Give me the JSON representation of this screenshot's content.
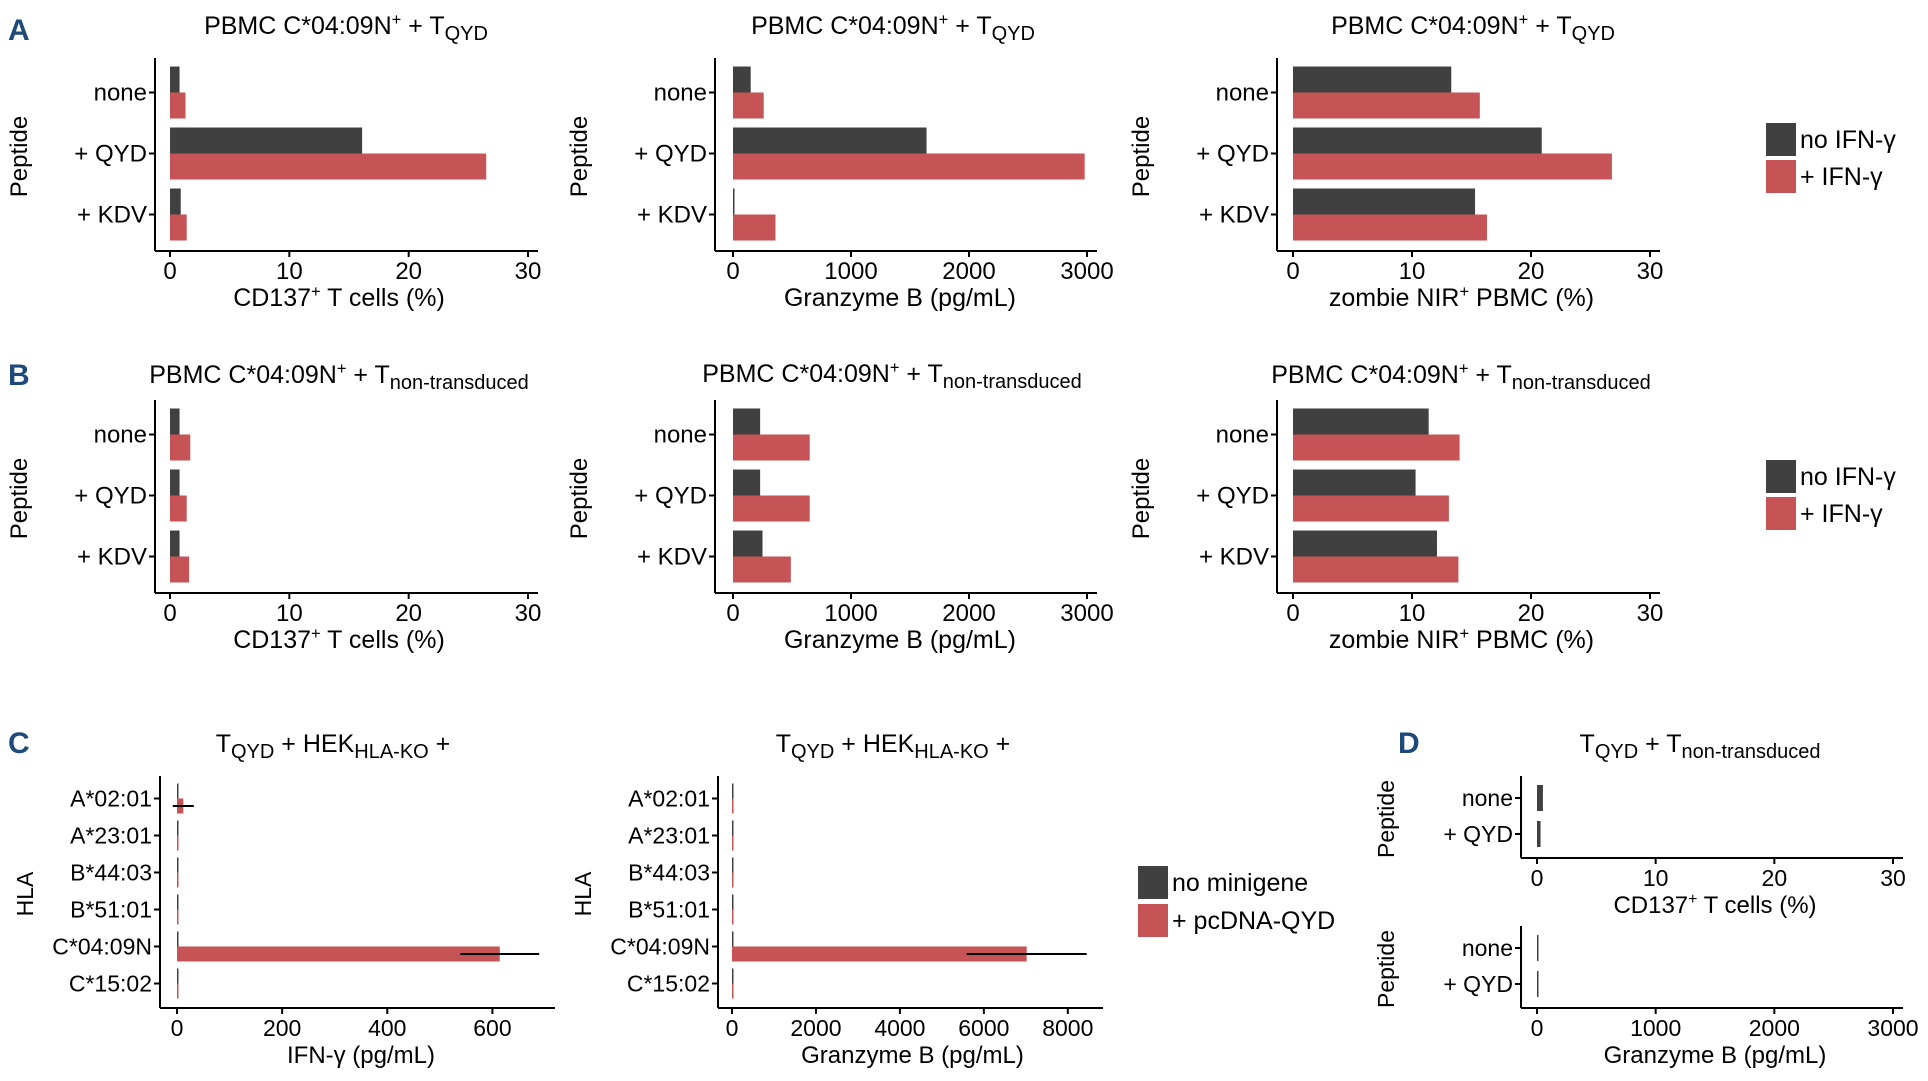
{
  "colors": {
    "no_treatment": "#404040",
    "treatment": "#c65355",
    "axis": "#000000",
    "panel_letter": "#1d4a7a"
  },
  "panels": {
    "A": "A",
    "B": "B",
    "C": "C",
    "D": "D"
  },
  "legends": {
    "ifn": {
      "no_label": "no IFN-γ",
      "plus_label": "+ IFN-γ"
    },
    "minigene": {
      "no_label": "no minigene",
      "plus_label": "+ pcDNA-QYD"
    }
  },
  "chart_data": [
    {
      "id": "A1",
      "panel": "A",
      "type": "bar",
      "orientation": "horizontal",
      "title": {
        "main": "PBMC C*04:09N",
        "sup": "+",
        "mid": " + T",
        "sub": "QYD"
      },
      "ylabel": "Peptide",
      "xlabel": {
        "pre": "CD137",
        "sup": "+",
        "post": " T cells (%)"
      },
      "xlim": [
        0,
        30
      ],
      "xticks": [
        "0",
        "10",
        "20",
        "30"
      ],
      "categories": [
        "none",
        "+ QYD",
        "+ KDV"
      ],
      "series": [
        {
          "name": "no IFN-γ",
          "values": [
            0.8,
            16.1,
            0.9
          ]
        },
        {
          "name": "+ IFN-γ",
          "values": [
            1.3,
            26.5,
            1.4
          ]
        }
      ]
    },
    {
      "id": "A2",
      "panel": "A",
      "type": "bar",
      "orientation": "horizontal",
      "title": {
        "main": "PBMC C*04:09N",
        "sup": "+",
        "mid": " + T",
        "sub": "QYD"
      },
      "ylabel": "Peptide",
      "xlabel": {
        "pre": "Granzyme B (pg/mL)",
        "sup": "",
        "post": ""
      },
      "xlim": [
        0,
        3000
      ],
      "xticks": [
        "0",
        "1000",
        "2000",
        "3000"
      ],
      "categories": [
        "none",
        "+ QYD",
        "+ KDV"
      ],
      "series": [
        {
          "name": "no IFN-γ",
          "values": [
            150,
            1640,
            10
          ]
        },
        {
          "name": "+ IFN-γ",
          "values": [
            260,
            2980,
            360
          ]
        }
      ]
    },
    {
      "id": "A3",
      "panel": "A",
      "type": "bar",
      "orientation": "horizontal",
      "title": {
        "main": "PBMC C*04:09N",
        "sup": "+",
        "mid": " + T",
        "sub": "QYD"
      },
      "ylabel": "Peptide",
      "xlabel": {
        "pre": "zombie NIR",
        "sup": "+",
        "post": " PBMC (%)"
      },
      "xlim": [
        0,
        30
      ],
      "xticks": [
        "0",
        "10",
        "20",
        "30"
      ],
      "categories": [
        "none",
        "+ QYD",
        "+ KDV"
      ],
      "series": [
        {
          "name": "no IFN-γ",
          "values": [
            13.3,
            20.9,
            15.3
          ]
        },
        {
          "name": "+ IFN-γ",
          "values": [
            15.7,
            26.8,
            16.3
          ]
        }
      ]
    },
    {
      "id": "B1",
      "panel": "B",
      "type": "bar",
      "orientation": "horizontal",
      "title": {
        "main": "PBMC C*04:09N",
        "sup": "+",
        "mid": " + T",
        "sub": "non-transduced"
      },
      "ylabel": "Peptide",
      "xlabel": {
        "pre": "CD137",
        "sup": "+",
        "post": " T cells (%)"
      },
      "xlim": [
        0,
        30
      ],
      "xticks": [
        "0",
        "10",
        "20",
        "30"
      ],
      "categories": [
        "none",
        "+ QYD",
        "+ KDV"
      ],
      "series": [
        {
          "name": "no IFN-γ",
          "values": [
            0.8,
            0.8,
            0.8
          ]
        },
        {
          "name": "+ IFN-γ",
          "values": [
            1.7,
            1.4,
            1.6
          ]
        }
      ]
    },
    {
      "id": "B2",
      "panel": "B",
      "type": "bar",
      "orientation": "horizontal",
      "title": {
        "main": "PBMC C*04:09N",
        "sup": "+",
        "mid": " + T",
        "sub": "non-transduced"
      },
      "ylabel": "Peptide",
      "xlabel": {
        "pre": "Granzyme B (pg/mL)",
        "sup": "",
        "post": ""
      },
      "xlim": [
        0,
        3000
      ],
      "xticks": [
        "0",
        "1000",
        "2000",
        "3000"
      ],
      "categories": [
        "none",
        "+ QYD",
        "+ KDV"
      ],
      "series": [
        {
          "name": "no IFN-γ",
          "values": [
            230,
            230,
            250
          ]
        },
        {
          "name": "+ IFN-γ",
          "values": [
            650,
            650,
            490
          ]
        }
      ]
    },
    {
      "id": "B3",
      "panel": "B",
      "type": "bar",
      "orientation": "horizontal",
      "title": {
        "main": "PBMC C*04:09N",
        "sup": "+",
        "mid": " + T",
        "sub": "non-transduced"
      },
      "ylabel": "Peptide",
      "xlabel": {
        "pre": "zombie NIR",
        "sup": "+",
        "post": " PBMC (%)"
      },
      "xlim": [
        0,
        30
      ],
      "xticks": [
        "0",
        "10",
        "20",
        "30"
      ],
      "categories": [
        "none",
        "+ QYD",
        "+ KDV"
      ],
      "series": [
        {
          "name": "no IFN-γ",
          "values": [
            11.4,
            10.3,
            12.1
          ]
        },
        {
          "name": "+ IFN-γ",
          "values": [
            14.0,
            13.1,
            13.9
          ]
        }
      ]
    },
    {
      "id": "C1",
      "panel": "C",
      "type": "bar",
      "orientation": "horizontal",
      "title": {
        "main": "",
        "sup": "",
        "mid": "T",
        "sub": "QYD",
        "mid2": " + HEK",
        "sub2": "HLA-KO",
        "post": " +"
      },
      "ylabel": "HLA",
      "xlabel": {
        "pre": "IFN-γ (pg/mL)",
        "sup": "",
        "post": ""
      },
      "xlim": [
        0,
        700
      ],
      "xticks": [
        "0",
        "200",
        "400",
        "600"
      ],
      "categories": [
        "A*02:01",
        "A*23:01",
        "B*44:03",
        "B*51:01",
        "C*04:09N",
        "C*15:02"
      ],
      "series": [
        {
          "name": "no minigene",
          "values": [
            0,
            0,
            0,
            0,
            0,
            0
          ]
        },
        {
          "name": "+ pcDNA-QYD",
          "values": [
            12,
            0,
            0,
            0,
            614,
            0
          ],
          "errors": [
            20,
            0,
            0,
            0,
            75,
            0
          ]
        }
      ]
    },
    {
      "id": "C2",
      "panel": "C",
      "type": "bar",
      "orientation": "horizontal",
      "title": {
        "main": "",
        "sup": "",
        "mid": "T",
        "sub": "QYD",
        "mid2": " + HEK",
        "sub2": "HLA-KO",
        "post": " +"
      },
      "ylabel": "HLA",
      "xlabel": {
        "pre": "Granzyme B (pg/mL)",
        "sup": "",
        "post": ""
      },
      "xlim": [
        0,
        8600
      ],
      "xticks": [
        "0",
        "2000",
        "4000",
        "6000",
        "8000"
      ],
      "categories": [
        "A*02:01",
        "A*23:01",
        "B*44:03",
        "B*51:01",
        "C*04:09N",
        "C*15:02"
      ],
      "series": [
        {
          "name": "no minigene",
          "values": [
            0,
            0,
            0,
            0,
            0,
            0
          ]
        },
        {
          "name": "+ pcDNA-QYD",
          "values": [
            0,
            0,
            0,
            0,
            7020,
            0
          ],
          "errors": [
            0,
            0,
            0,
            0,
            1430,
            0
          ]
        }
      ]
    },
    {
      "id": "D1",
      "panel": "D",
      "type": "bar",
      "orientation": "horizontal",
      "title": {
        "main": "",
        "sup": "",
        "mid": "T",
        "sub": "QYD",
        "mid2": " + T",
        "sub2": "non-transduced",
        "post": ""
      },
      "ylabel": "Peptide",
      "xlabel": {
        "pre": "CD137",
        "sup": "+",
        "post": " T cells (%)"
      },
      "xlim": [
        0,
        30
      ],
      "xticks": [
        "0",
        "10",
        "20",
        "30"
      ],
      "categories": [
        "none",
        "+ QYD"
      ],
      "series": [
        {
          "name": "no IFN-γ",
          "values": [
            0.5,
            0.3
          ]
        }
      ]
    },
    {
      "id": "D2",
      "panel": "D",
      "type": "bar",
      "orientation": "horizontal",
      "title": null,
      "ylabel": "Peptide",
      "xlabel": {
        "pre": "Granzyme B (pg/mL)",
        "sup": "",
        "post": ""
      },
      "xlim": [
        0,
        3000
      ],
      "xticks": [
        "0",
        "1000",
        "2000",
        "3000"
      ],
      "categories": [
        "none",
        "+ QYD"
      ],
      "series": [
        {
          "name": "no IFN-γ",
          "values": [
            5,
            5
          ]
        }
      ]
    }
  ]
}
